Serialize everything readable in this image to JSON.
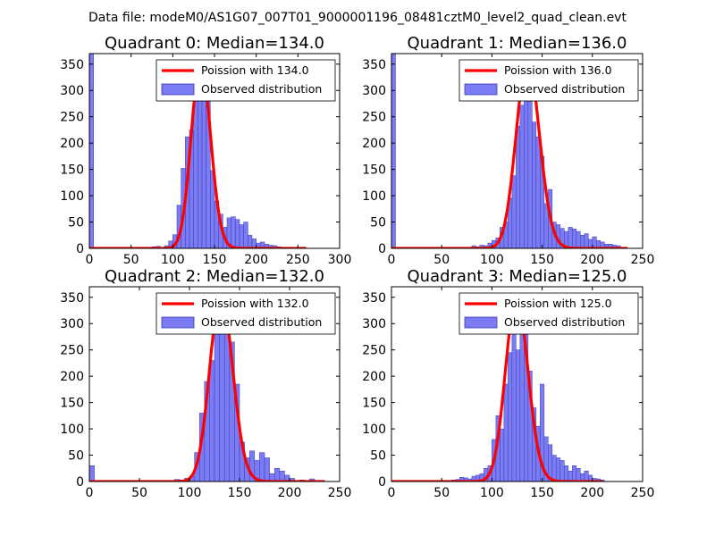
{
  "figure_title": "Data file: modeM0/AS1G07_007T01_9000001196_08481cztM0_level2_quad_clean.evt",
  "colors": {
    "poisson_line": "#ff0000",
    "hist_fill": "#7b7bf4",
    "hist_edge": "#3a3ab5"
  },
  "chart_data": [
    {
      "type": "bar",
      "title": "Quadrant 0: Median=134.0",
      "xlim": [
        0,
        300
      ],
      "ylim": [
        0,
        370
      ],
      "xticks": [
        "0",
        "50",
        "100",
        "150",
        "200",
        "250",
        "300"
      ],
      "yticks": [
        "0",
        "50",
        "100",
        "150",
        "200",
        "250",
        "300",
        "350"
      ],
      "bin_width": 5,
      "hist": [
        [
          0,
          370
        ],
        [
          75,
          3
        ],
        [
          80,
          4
        ],
        [
          90,
          5
        ],
        [
          95,
          14
        ],
        [
          100,
          26
        ],
        [
          105,
          82
        ],
        [
          110,
          152
        ],
        [
          115,
          212
        ],
        [
          120,
          225
        ],
        [
          125,
          300
        ],
        [
          130,
          355
        ],
        [
          135,
          345
        ],
        [
          140,
          295
        ],
        [
          145,
          148
        ],
        [
          150,
          90
        ],
        [
          155,
          65
        ],
        [
          160,
          40
        ],
        [
          165,
          58
        ],
        [
          170,
          60
        ],
        [
          175,
          55
        ],
        [
          180,
          45
        ],
        [
          185,
          50
        ],
        [
          190,
          25
        ],
        [
          195,
          18
        ],
        [
          200,
          10
        ],
        [
          205,
          12
        ],
        [
          210,
          8
        ],
        [
          215,
          6
        ],
        [
          220,
          5
        ],
        [
          225,
          3
        ],
        [
          230,
          2
        ],
        [
          245,
          2
        ]
      ],
      "poisson_mean": 134.0,
      "poisson_xrange": [
        0,
        260
      ],
      "legend": [
        "Poission with 134.0",
        "Observed distribution"
      ]
    },
    {
      "type": "bar",
      "title": "Quadrant 1: Median=136.0",
      "xlim": [
        0,
        250
      ],
      "ylim": [
        0,
        370
      ],
      "xticks": [
        "0",
        "50",
        "100",
        "150",
        "200",
        "250"
      ],
      "yticks": [
        "0",
        "50",
        "100",
        "150",
        "200",
        "250",
        "300",
        "350"
      ],
      "bin_width": 4,
      "hist": [
        [
          0,
          370
        ],
        [
          80,
          5
        ],
        [
          84,
          3
        ],
        [
          88,
          6
        ],
        [
          92,
          5
        ],
        [
          96,
          10
        ],
        [
          100,
          15
        ],
        [
          104,
          20
        ],
        [
          108,
          40
        ],
        [
          112,
          50
        ],
        [
          116,
          95
        ],
        [
          120,
          138
        ],
        [
          124,
          232
        ],
        [
          128,
          272
        ],
        [
          132,
          310
        ],
        [
          136,
          356
        ],
        [
          140,
          240
        ],
        [
          144,
          212
        ],
        [
          148,
          175
        ],
        [
          152,
          85
        ],
        [
          156,
          112
        ],
        [
          160,
          50
        ],
        [
          164,
          45
        ],
        [
          168,
          38
        ],
        [
          172,
          32
        ],
        [
          176,
          40
        ],
        [
          180,
          37
        ],
        [
          184,
          32
        ],
        [
          188,
          25
        ],
        [
          192,
          28
        ],
        [
          196,
          17
        ],
        [
          200,
          22
        ],
        [
          204,
          15
        ],
        [
          208,
          12
        ],
        [
          212,
          8
        ],
        [
          216,
          8
        ],
        [
          220,
          6
        ],
        [
          224,
          5
        ],
        [
          228,
          2
        ]
      ],
      "poisson_mean": 136.0,
      "poisson_xrange": [
        0,
        235
      ],
      "legend": [
        "Poission with 136.0",
        "Observed distribution"
      ]
    },
    {
      "type": "bar",
      "title": "Quadrant 2: Median=132.0",
      "xlim": [
        0,
        250
      ],
      "ylim": [
        0,
        370
      ],
      "xticks": [
        "0",
        "50",
        "100",
        "150",
        "200",
        "250"
      ],
      "yticks": [
        "0",
        "50",
        "100",
        "150",
        "200",
        "250",
        "300",
        "350"
      ],
      "bin_width": 5,
      "hist": [
        [
          0,
          30
        ],
        [
          75,
          2
        ],
        [
          85,
          4
        ],
        [
          90,
          3
        ],
        [
          95,
          6
        ],
        [
          100,
          10
        ],
        [
          105,
          55
        ],
        [
          110,
          130
        ],
        [
          115,
          190
        ],
        [
          120,
          230
        ],
        [
          125,
          290
        ],
        [
          130,
          355
        ],
        [
          135,
          330
        ],
        [
          140,
          265
        ],
        [
          145,
          185
        ],
        [
          150,
          75
        ],
        [
          155,
          45
        ],
        [
          160,
          58
        ],
        [
          165,
          40
        ],
        [
          170,
          55
        ],
        [
          175,
          45
        ],
        [
          180,
          15
        ],
        [
          185,
          25
        ],
        [
          190,
          20
        ],
        [
          195,
          12
        ],
        [
          200,
          6
        ],
        [
          210,
          3
        ],
        [
          220,
          5
        ],
        [
          230,
          2
        ]
      ],
      "poisson_mean": 132.0,
      "poisson_xrange": [
        0,
        235
      ],
      "legend": [
        "Poission with 132.0",
        "Observed distribution"
      ]
    },
    {
      "type": "bar",
      "title": "Quadrant 3: Median=125.0",
      "xlim": [
        0,
        250
      ],
      "ylim": [
        0,
        370
      ],
      "xticks": [
        "0",
        "50",
        "100",
        "150",
        "200",
        "250"
      ],
      "yticks": [
        "0",
        "50",
        "100",
        "150",
        "200",
        "250",
        "300",
        "350"
      ],
      "bin_width": 4,
      "hist": [
        [
          60,
          3
        ],
        [
          64,
          4
        ],
        [
          68,
          8
        ],
        [
          72,
          7
        ],
        [
          76,
          5
        ],
        [
          80,
          10
        ],
        [
          84,
          12
        ],
        [
          88,
          15
        ],
        [
          92,
          25
        ],
        [
          96,
          30
        ],
        [
          100,
          80
        ],
        [
          104,
          125
        ],
        [
          108,
          100
        ],
        [
          112,
          185
        ],
        [
          116,
          245
        ],
        [
          120,
          315
        ],
        [
          124,
          250
        ],
        [
          128,
          285
        ],
        [
          132,
          350
        ],
        [
          136,
          210
        ],
        [
          140,
          140
        ],
        [
          144,
          105
        ],
        [
          148,
          185
        ],
        [
          152,
          85
        ],
        [
          156,
          70
        ],
        [
          160,
          50
        ],
        [
          164,
          45
        ],
        [
          168,
          40
        ],
        [
          172,
          30
        ],
        [
          176,
          20
        ],
        [
          180,
          30
        ],
        [
          184,
          25
        ],
        [
          188,
          15
        ],
        [
          192,
          20
        ],
        [
          196,
          12
        ],
        [
          200,
          6
        ],
        [
          204,
          5
        ],
        [
          208,
          3
        ]
      ],
      "poisson_mean": 125.0,
      "poisson_xrange": [
        0,
        210
      ],
      "legend": [
        "Poission with 125.0",
        "Observed distribution"
      ]
    }
  ]
}
